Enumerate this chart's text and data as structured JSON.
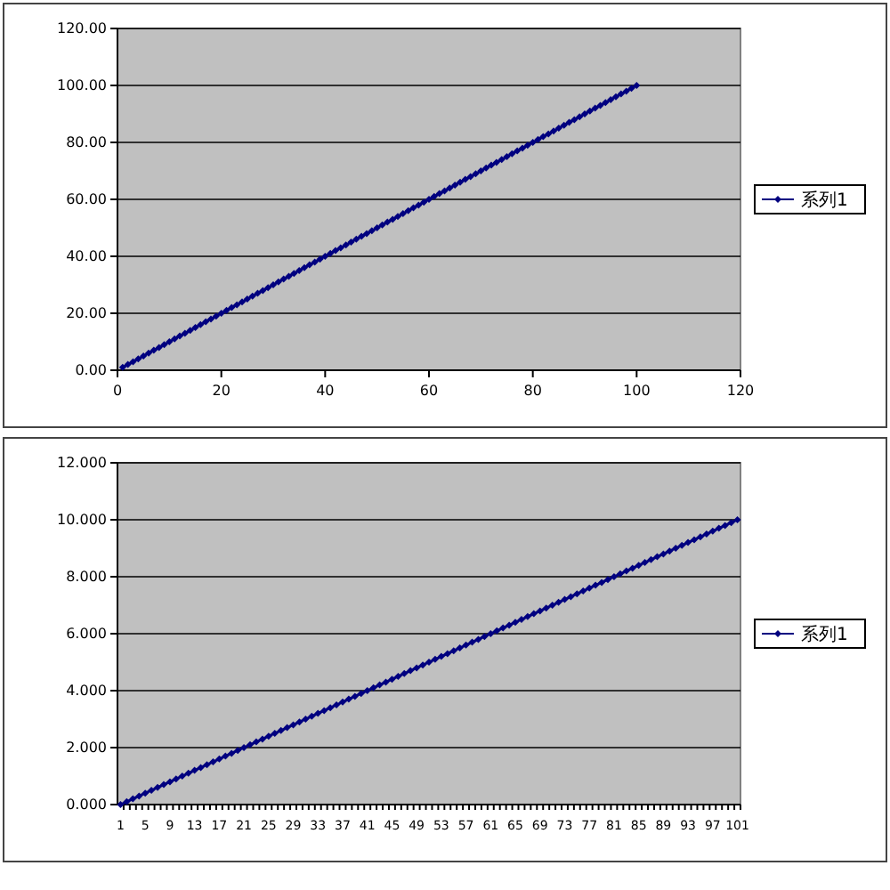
{
  "chart_data": [
    {
      "type": "line",
      "x": [
        1,
        2,
        3,
        4,
        5,
        6,
        7,
        8,
        9,
        10,
        11,
        12,
        13,
        14,
        15,
        16,
        17,
        18,
        19,
        20,
        21,
        22,
        23,
        24,
        25,
        26,
        27,
        28,
        29,
        30,
        31,
        32,
        33,
        34,
        35,
        36,
        37,
        38,
        39,
        40,
        41,
        42,
        43,
        44,
        45,
        46,
        47,
        48,
        49,
        50,
        51,
        52,
        53,
        54,
        55,
        56,
        57,
        58,
        59,
        60,
        61,
        62,
        63,
        64,
        65,
        66,
        67,
        68,
        69,
        70,
        71,
        72,
        73,
        74,
        75,
        76,
        77,
        78,
        79,
        80,
        81,
        82,
        83,
        84,
        85,
        86,
        87,
        88,
        89,
        90,
        91,
        92,
        93,
        94,
        95,
        96,
        97,
        98,
        99,
        100
      ],
      "series": [
        {
          "name": "系列1",
          "color": "#000080",
          "values": [
            1,
            2,
            3,
            4,
            5,
            6,
            7,
            8,
            9,
            10,
            11,
            12,
            13,
            14,
            15,
            16,
            17,
            18,
            19,
            20,
            21,
            22,
            23,
            24,
            25,
            26,
            27,
            28,
            29,
            30,
            31,
            32,
            33,
            34,
            35,
            36,
            37,
            38,
            39,
            40,
            41,
            42,
            43,
            44,
            45,
            46,
            47,
            48,
            49,
            50,
            51,
            52,
            53,
            54,
            55,
            56,
            57,
            58,
            59,
            60,
            61,
            62,
            63,
            64,
            65,
            66,
            67,
            68,
            69,
            70,
            71,
            72,
            73,
            74,
            75,
            76,
            77,
            78,
            79,
            80,
            81,
            82,
            83,
            84,
            85,
            86,
            87,
            88,
            89,
            90,
            91,
            92,
            93,
            94,
            95,
            96,
            97,
            98,
            99,
            100
          ]
        }
      ],
      "xlim": [
        0,
        120
      ],
      "xticks": [
        0,
        20,
        40,
        60,
        80,
        100,
        120
      ],
      "ylim": [
        0,
        120
      ],
      "yticks": [
        {
          "value": 0,
          "label": "0.00"
        },
        {
          "value": 20,
          "label": "20.00"
        },
        {
          "value": 40,
          "label": "40.00"
        },
        {
          "value": 60,
          "label": "60.00"
        },
        {
          "value": 80,
          "label": "80.00"
        },
        {
          "value": 100,
          "label": "100.00"
        },
        {
          "value": 120,
          "label": "120.00"
        }
      ],
      "grid": "y",
      "legend": "right",
      "marker": "diamond",
      "line_style": "solid"
    },
    {
      "type": "line",
      "categories": [
        "1",
        null,
        null,
        null,
        "5",
        null,
        null,
        null,
        "9",
        null,
        null,
        null,
        "13",
        null,
        null,
        null,
        "17",
        null,
        null,
        null,
        "21",
        null,
        null,
        null,
        "25",
        null,
        null,
        null,
        "29",
        null,
        null,
        null,
        "33",
        null,
        null,
        null,
        "37",
        null,
        null,
        null,
        "41",
        null,
        null,
        null,
        "45",
        null,
        null,
        null,
        "49",
        null,
        null,
        null,
        "53",
        null,
        null,
        null,
        "57",
        null,
        null,
        null,
        "61",
        null,
        null,
        null,
        "65",
        null,
        null,
        null,
        "69",
        null,
        null,
        null,
        "73",
        null,
        null,
        null,
        "77",
        null,
        null,
        null,
        "81",
        null,
        null,
        null,
        "85",
        null,
        null,
        null,
        "89",
        null,
        null,
        null,
        "93",
        null,
        null,
        null,
        "97",
        null,
        null,
        null,
        "101"
      ],
      "series": [
        {
          "name": "系列1",
          "color": "#000080",
          "values": [
            0,
            0.1,
            0.2,
            0.3,
            0.4,
            0.5,
            0.6,
            0.7,
            0.8,
            0.9,
            1,
            1.1,
            1.2,
            1.3,
            1.4,
            1.5,
            1.6,
            1.7,
            1.8,
            1.9,
            2,
            2.1,
            2.2,
            2.3,
            2.4,
            2.5,
            2.6,
            2.7,
            2.8,
            2.9,
            3,
            3.1,
            3.2,
            3.3,
            3.4,
            3.5,
            3.6,
            3.7,
            3.8,
            3.9,
            4,
            4.1,
            4.2,
            4.3,
            4.4,
            4.5,
            4.6,
            4.7,
            4.8,
            4.9,
            5,
            5.1,
            5.2,
            5.3,
            5.4,
            5.5,
            5.6,
            5.7,
            5.8,
            5.9,
            6,
            6.1,
            6.2,
            6.3,
            6.4,
            6.5,
            6.6,
            6.7,
            6.8,
            6.9,
            7,
            7.1,
            7.2,
            7.3,
            7.4,
            7.5,
            7.6,
            7.7,
            7.8,
            7.9,
            8,
            8.1,
            8.2,
            8.3,
            8.4,
            8.5,
            8.6,
            8.7,
            8.8,
            8.9,
            9,
            9.1,
            9.2,
            9.3,
            9.4,
            9.5,
            9.6,
            9.7,
            9.8,
            9.9,
            10
          ]
        }
      ],
      "ylim": [
        0,
        12
      ],
      "yticks": [
        {
          "value": 0,
          "label": "0.000"
        },
        {
          "value": 2,
          "label": "2.000"
        },
        {
          "value": 4,
          "label": "4.000"
        },
        {
          "value": 6,
          "label": "6.000"
        },
        {
          "value": 8,
          "label": "8.000"
        },
        {
          "value": 10,
          "label": "10.000"
        },
        {
          "value": 12,
          "label": "12.000"
        }
      ],
      "grid": "y",
      "legend": "right",
      "marker": "diamond",
      "line_style": "solid"
    }
  ]
}
